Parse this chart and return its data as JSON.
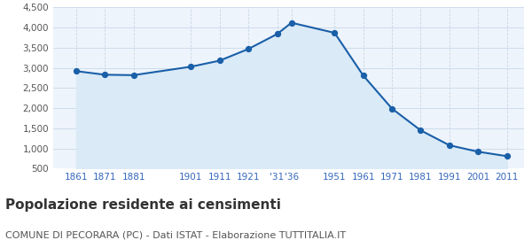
{
  "years": [
    1861,
    1871,
    1881,
    1901,
    1911,
    1921,
    1931,
    1936,
    1951,
    1961,
    1971,
    1981,
    1991,
    2001,
    2011
  ],
  "population": [
    2920,
    2830,
    2820,
    3030,
    3180,
    3470,
    3840,
    4120,
    3870,
    2810,
    1990,
    1450,
    1080,
    920,
    810
  ],
  "line_color": "#1a5fa8",
  "fill_color": "#daeaf7",
  "marker_color": "#1a5fa8",
  "background_color": "#eef4fb",
  "grid_color": "#c8d8e8",
  "ylim": [
    500,
    4500
  ],
  "yticks": [
    500,
    1000,
    1500,
    2000,
    2500,
    3000,
    3500,
    4000,
    4500
  ],
  "xlim_min": 1853,
  "xlim_max": 2017,
  "x_tick_positions": [
    1861,
    1871,
    1881,
    1901,
    1911,
    1921,
    1931,
    1936,
    1951,
    1961,
    1971,
    1981,
    1991,
    2001,
    2011
  ],
  "x_tick_labels": [
    "1861",
    "1871",
    "1881",
    "1901",
    "1911",
    "1921",
    "'31",
    "'36",
    "1951",
    "1961",
    "1971",
    "1981",
    "1991",
    "2001",
    "2011"
  ],
  "tick_color": "#3366bb",
  "title": "Popolazione residente ai censimenti",
  "subtitle": "COMUNE DI PECORARA (PC) - Dati ISTAT - Elaborazione TUTTITALIA.IT",
  "title_fontsize": 11,
  "subtitle_fontsize": 8,
  "title_color": "#333333",
  "subtitle_color": "#555555"
}
